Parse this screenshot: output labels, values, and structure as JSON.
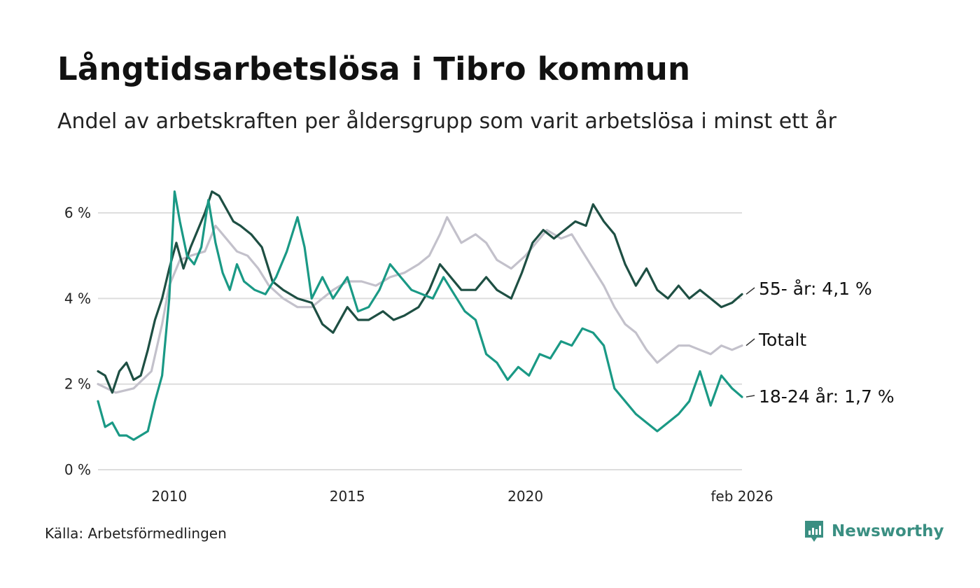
{
  "header": {
    "title": "Långtidsarbetslösa i Tibro kommun",
    "subtitle": "Andel av arbetskraften per åldersgrupp som varit arbetslösa i minst ett år"
  },
  "footer": {
    "source": "Källa: Arbetsförmedlingen",
    "brand": "Newsworthy"
  },
  "colors": {
    "age55": "#1e4f43",
    "total": "#c3c1cb",
    "age18": "#1a9985",
    "grid": "#dddddd",
    "brand": "#3a8f82"
  },
  "chart_data": {
    "type": "line",
    "title": "Långtidsarbetslösa i Tibro kommun",
    "ylim": [
      0,
      7
    ],
    "xlim": [
      2008.0,
      2026.08
    ],
    "y_ticks": [
      0,
      2,
      4,
      6
    ],
    "y_tick_labels": [
      "0 %",
      "2 %",
      "4 %",
      "6 %"
    ],
    "x_ticks": [
      2010,
      2015,
      2020,
      2026.08
    ],
    "x_tick_labels": [
      "2010",
      "2015",
      "2020",
      "feb 2026"
    ],
    "grid": true,
    "series": [
      {
        "name": "Totalt",
        "label": "Totalt",
        "color_key": "total",
        "x": [
          2008.0,
          2008.5,
          2009.0,
          2009.5,
          2009.8,
          2010.0,
          2010.3,
          2010.6,
          2011.0,
          2011.3,
          2011.6,
          2011.9,
          2012.2,
          2012.5,
          2012.8,
          2013.2,
          2013.6,
          2014.0,
          2014.3,
          2014.6,
          2015.0,
          2015.4,
          2015.8,
          2016.2,
          2016.6,
          2017.0,
          2017.3,
          2017.6,
          2017.8,
          2018.2,
          2018.6,
          2018.9,
          2019.2,
          2019.6,
          2020.0,
          2020.3,
          2020.6,
          2021.0,
          2021.3,
          2021.6,
          2021.9,
          2022.2,
          2022.5,
          2022.8,
          2023.1,
          2023.4,
          2023.7,
          2024.0,
          2024.3,
          2024.6,
          2024.9,
          2025.2,
          2025.5,
          2025.8,
          2026.08
        ],
        "y": [
          2.0,
          1.8,
          1.9,
          2.3,
          3.4,
          4.3,
          4.9,
          5.0,
          5.1,
          5.7,
          5.4,
          5.1,
          5.0,
          4.7,
          4.3,
          4.0,
          3.8,
          3.8,
          4.0,
          4.2,
          4.4,
          4.4,
          4.3,
          4.5,
          4.6,
          4.8,
          5.0,
          5.5,
          5.9,
          5.3,
          5.5,
          5.3,
          4.9,
          4.7,
          5.0,
          5.3,
          5.6,
          5.4,
          5.5,
          5.1,
          4.7,
          4.3,
          3.8,
          3.4,
          3.2,
          2.8,
          2.5,
          2.7,
          2.9,
          2.9,
          2.8,
          2.7,
          2.9,
          2.8,
          2.9
        ]
      },
      {
        "name": "55- år",
        "label": "55- år: 4,1 %",
        "color_key": "age55",
        "x": [
          2008.0,
          2008.2,
          2008.4,
          2008.6,
          2008.8,
          2009.0,
          2009.2,
          2009.4,
          2009.6,
          2009.8,
          2010.0,
          2010.2,
          2010.4,
          2010.6,
          2010.8,
          2011.0,
          2011.2,
          2011.4,
          2011.6,
          2011.8,
          2012.0,
          2012.3,
          2012.6,
          2012.9,
          2013.2,
          2013.6,
          2014.0,
          2014.3,
          2014.6,
          2015.0,
          2015.3,
          2015.6,
          2016.0,
          2016.3,
          2016.6,
          2017.0,
          2017.3,
          2017.6,
          2017.8,
          2018.2,
          2018.6,
          2018.9,
          2019.2,
          2019.6,
          2019.9,
          2020.2,
          2020.5,
          2020.8,
          2021.1,
          2021.4,
          2021.7,
          2021.9,
          2022.2,
          2022.5,
          2022.8,
          2023.1,
          2023.4,
          2023.7,
          2024.0,
          2024.3,
          2024.6,
          2024.9,
          2025.2,
          2025.5,
          2025.8,
          2026.08
        ],
        "y": [
          2.3,
          2.2,
          1.8,
          2.3,
          2.5,
          2.1,
          2.2,
          2.8,
          3.5,
          4.0,
          4.7,
          5.3,
          4.7,
          5.2,
          5.6,
          6.0,
          6.5,
          6.4,
          6.1,
          5.8,
          5.7,
          5.5,
          5.2,
          4.4,
          4.2,
          4.0,
          3.9,
          3.4,
          3.2,
          3.8,
          3.5,
          3.5,
          3.7,
          3.5,
          3.6,
          3.8,
          4.2,
          4.8,
          4.6,
          4.2,
          4.2,
          4.5,
          4.2,
          4.0,
          4.6,
          5.3,
          5.6,
          5.4,
          5.6,
          5.8,
          5.7,
          6.2,
          5.8,
          5.5,
          4.8,
          4.3,
          4.7,
          4.2,
          4.0,
          4.3,
          4.0,
          4.2,
          4.0,
          3.8,
          3.9,
          4.1
        ]
      },
      {
        "name": "18-24 år",
        "label": "18-24 år: 1,7 %",
        "color_key": "age18",
        "x": [
          2008.0,
          2008.2,
          2008.4,
          2008.6,
          2008.8,
          2009.0,
          2009.2,
          2009.4,
          2009.6,
          2009.8,
          2010.0,
          2010.15,
          2010.3,
          2010.5,
          2010.7,
          2010.9,
          2011.1,
          2011.3,
          2011.5,
          2011.7,
          2011.9,
          2012.1,
          2012.4,
          2012.7,
          2013.0,
          2013.3,
          2013.6,
          2013.8,
          2014.0,
          2014.3,
          2014.6,
          2015.0,
          2015.3,
          2015.6,
          2015.9,
          2016.2,
          2016.5,
          2016.8,
          2017.1,
          2017.4,
          2017.7,
          2018.0,
          2018.3,
          2018.6,
          2018.9,
          2019.2,
          2019.5,
          2019.8,
          2020.1,
          2020.4,
          2020.7,
          2021.0,
          2021.3,
          2021.6,
          2021.9,
          2022.2,
          2022.5,
          2022.8,
          2023.1,
          2023.4,
          2023.7,
          2024.0,
          2024.3,
          2024.6,
          2024.9,
          2025.2,
          2025.5,
          2025.8,
          2026.08
        ],
        "y": [
          1.6,
          1.0,
          1.1,
          0.8,
          0.8,
          0.7,
          0.8,
          0.9,
          1.6,
          2.2,
          4.0,
          6.5,
          5.8,
          5.0,
          4.8,
          5.2,
          6.3,
          5.3,
          4.6,
          4.2,
          4.8,
          4.4,
          4.2,
          4.1,
          4.5,
          5.1,
          5.9,
          5.2,
          4.0,
          4.5,
          4.0,
          4.5,
          3.7,
          3.8,
          4.2,
          4.8,
          4.5,
          4.2,
          4.1,
          4.0,
          4.5,
          4.1,
          3.7,
          3.5,
          2.7,
          2.5,
          2.1,
          2.4,
          2.2,
          2.7,
          2.6,
          3.0,
          2.9,
          3.3,
          3.2,
          2.9,
          1.9,
          1.6,
          1.3,
          1.1,
          0.9,
          1.1,
          1.3,
          1.6,
          2.3,
          1.5,
          2.2,
          1.9,
          1.7
        ]
      }
    ]
  }
}
